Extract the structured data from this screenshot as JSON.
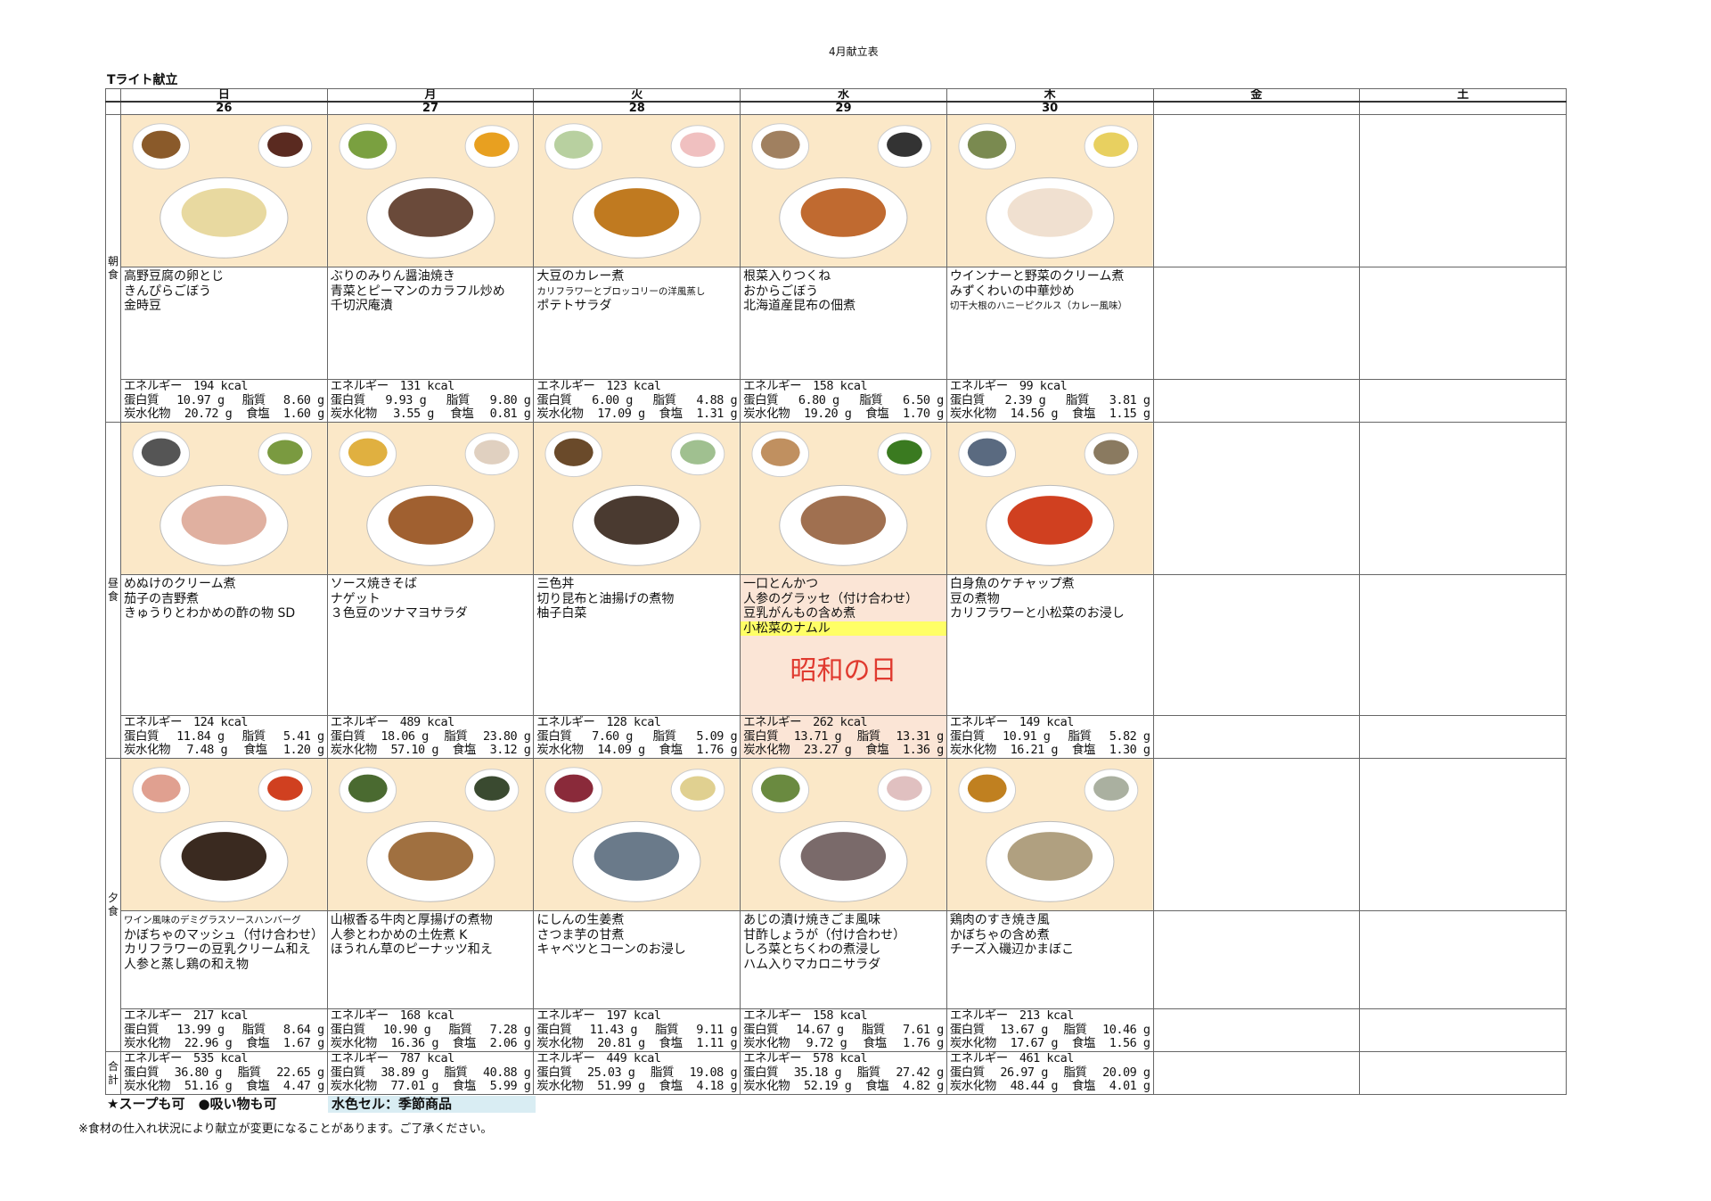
{
  "document_title": "4月献立表",
  "menu_name": "Tライト献立",
  "meal_labels": {
    "breakfast": "朝食",
    "lunch": "昼食",
    "dinner": "夕食",
    "total": "合計"
  },
  "nutrition_labels": {
    "energy": "エネルギー",
    "protein": "蛋白質",
    "fat": "脂質",
    "carbs": "炭水化物",
    "salt": "食塩",
    "kcal": "kcal",
    "g": "g"
  },
  "colors": {
    "photo_bg": "#fbe8c8",
    "holiday_bg": "#fbe5d6",
    "holiday_text": "#e03a2f",
    "highlight": "#ffff66",
    "seasonal": "#d9edf3"
  },
  "days": [
    {
      "dow": "日",
      "date": "26",
      "breakfast": {
        "items": [
          {
            "text": "高野豆腐の卵とじ"
          },
          {
            "text": "きんぴらごぼう"
          },
          {
            "text": "金時豆"
          }
        ],
        "nutrition": {
          "energy": "194",
          "protein": "10.97",
          "fat": "8.60",
          "carbs": "20.72",
          "salt": "1.60"
        }
      },
      "lunch": {
        "items": [
          {
            "text": "めぬけのクリーム煮"
          },
          {
            "text": "茄子の吉野煮"
          },
          {
            "text": "きゅうりとわかめの酢の物 SD"
          }
        ],
        "nutrition": {
          "energy": "124",
          "protein": "11.84",
          "fat": "5.41",
          "carbs": "7.48",
          "salt": "1.20"
        }
      },
      "dinner": {
        "items": [
          {
            "text": "ワイン風味のデミグラスソースハンバーグ",
            "small": true
          },
          {
            "text": "かぼちゃのマッシュ（付け合わせ）"
          },
          {
            "text": "カリフラワーの豆乳クリーム和え"
          },
          {
            "text": "人参と蒸し鶏の和え物"
          }
        ],
        "nutrition": {
          "energy": "217",
          "protein": "13.99",
          "fat": "8.64",
          "carbs": "22.96",
          "salt": "1.67"
        }
      },
      "total": {
        "energy": "535",
        "protein": "36.80",
        "fat": "22.65",
        "carbs": "51.16",
        "salt": "4.47"
      }
    },
    {
      "dow": "月",
      "date": "27",
      "breakfast": {
        "items": [
          {
            "text": "ぶりのみりん醤油焼き"
          },
          {
            "text": "青菜とピーマンのカラフル炒め"
          },
          {
            "text": "千切沢庵漬"
          }
        ],
        "nutrition": {
          "energy": "131",
          "protein": "9.93",
          "fat": "9.80",
          "carbs": "3.55",
          "salt": "0.81"
        }
      },
      "lunch": {
        "items": [
          {
            "text": "ソース焼きそば"
          },
          {
            "text": "ナゲット"
          },
          {
            "text": "３色豆のツナマヨサラダ"
          }
        ],
        "nutrition": {
          "energy": "489",
          "protein": "18.06",
          "fat": "23.80",
          "carbs": "57.10",
          "salt": "3.12"
        }
      },
      "dinner": {
        "items": [
          {
            "text": "山椒香る牛肉と厚揚げの煮物"
          },
          {
            "text": "人参とわかめの土佐煮 K"
          },
          {
            "text": "ほうれん草のピーナッツ和え"
          }
        ],
        "nutrition": {
          "energy": "168",
          "protein": "10.90",
          "fat": "7.28",
          "carbs": "16.36",
          "salt": "2.06"
        }
      },
      "total": {
        "energy": "787",
        "protein": "38.89",
        "fat": "40.88",
        "carbs": "77.01",
        "salt": "5.99"
      }
    },
    {
      "dow": "火",
      "date": "28",
      "breakfast": {
        "items": [
          {
            "text": "大豆のカレー煮"
          },
          {
            "text": "カリフラワーとブロッコリーの洋風蒸し",
            "small": true
          },
          {
            "text": "ポテトサラダ"
          }
        ],
        "nutrition": {
          "energy": "123",
          "protein": "6.00",
          "fat": "4.88",
          "carbs": "17.09",
          "salt": "1.31"
        }
      },
      "lunch": {
        "items": [
          {
            "text": "三色丼"
          },
          {
            "text": "切り昆布と油揚げの煮物"
          },
          {
            "text": "柚子白菜"
          }
        ],
        "nutrition": {
          "energy": "128",
          "protein": "7.60",
          "fat": "5.09",
          "carbs": "14.09",
          "salt": "1.76"
        }
      },
      "dinner": {
        "items": [
          {
            "text": "にしんの生姜煮"
          },
          {
            "text": "さつま芋の甘煮"
          },
          {
            "text": "キャベツとコーンのお浸し"
          }
        ],
        "nutrition": {
          "energy": "197",
          "protein": "11.43",
          "fat": "9.11",
          "carbs": "20.81",
          "salt": "1.11"
        }
      },
      "total": {
        "energy": "449",
        "protein": "25.03",
        "fat": "19.08",
        "carbs": "51.99",
        "salt": "4.18"
      }
    },
    {
      "dow": "水",
      "date": "29",
      "breakfast": {
        "items": [
          {
            "text": "根菜入りつくね"
          },
          {
            "text": "おからごぼう"
          },
          {
            "text": "北海道産昆布の佃煮"
          }
        ],
        "nutrition": {
          "energy": "158",
          "protein": "6.80",
          "fat": "6.50",
          "carbs": "19.20",
          "salt": "1.70"
        }
      },
      "lunch": {
        "holiday": "昭和の日",
        "items": [
          {
            "text": "一口とんかつ"
          },
          {
            "text": "人参のグラッセ（付け合わせ）"
          },
          {
            "text": "豆乳がんもの含め煮"
          },
          {
            "text": "小松菜のナムル",
            "highlight": true
          }
        ],
        "nutrition": {
          "energy": "262",
          "protein": "13.71",
          "fat": "13.31",
          "carbs": "23.27",
          "salt": "1.36"
        }
      },
      "dinner": {
        "items": [
          {
            "text": "あじの漬け焼きごま風味"
          },
          {
            "text": "甘酢しょうが（付け合わせ）"
          },
          {
            "text": "しろ菜とちくわの煮浸し"
          },
          {
            "text": "ハム入りマカロニサラダ"
          }
        ],
        "nutrition": {
          "energy": "158",
          "protein": "14.67",
          "fat": "7.61",
          "carbs": "9.72",
          "salt": "1.76"
        }
      },
      "total": {
        "energy": "578",
        "protein": "35.18",
        "fat": "27.42",
        "carbs": "52.19",
        "salt": "4.82"
      }
    },
    {
      "dow": "木",
      "date": "30",
      "breakfast": {
        "items": [
          {
            "text": "ウインナーと野菜のクリーム煮"
          },
          {
            "text": "みずくわいの中華炒め"
          },
          {
            "text": "切干大根のハニーピクルス（カレー風味）",
            "small": true
          }
        ],
        "nutrition": {
          "energy": "99",
          "protein": "2.39",
          "fat": "3.81",
          "carbs": "14.56",
          "salt": "1.15"
        }
      },
      "lunch": {
        "items": [
          {
            "text": "白身魚のケチャップ煮"
          },
          {
            "text": "豆の煮物"
          },
          {
            "text": "カリフラワーと小松菜のお浸し"
          }
        ],
        "nutrition": {
          "energy": "149",
          "protein": "10.91",
          "fat": "5.82",
          "carbs": "16.21",
          "salt": "1.30"
        }
      },
      "dinner": {
        "items": [
          {
            "text": "鶏肉のすき焼き風"
          },
          {
            "text": "かぼちゃの含め煮"
          },
          {
            "text": "チーズ入磯辺かまぼこ"
          }
        ],
        "nutrition": {
          "energy": "213",
          "protein": "13.67",
          "fat": "10.46",
          "carbs": "17.67",
          "salt": "1.56"
        }
      },
      "total": {
        "energy": "461",
        "protein": "26.97",
        "fat": "20.09",
        "carbs": "48.44",
        "salt": "4.01"
      }
    },
    {
      "dow": "金"
    },
    {
      "dow": "土"
    }
  ],
  "legend": {
    "symbols": "★スープも可　●吸い物も可",
    "seasonal": "水色セル：季節商品"
  },
  "footnote": "※食材の仕入れ状況により献立が変更になることがあります。ご了承ください。"
}
